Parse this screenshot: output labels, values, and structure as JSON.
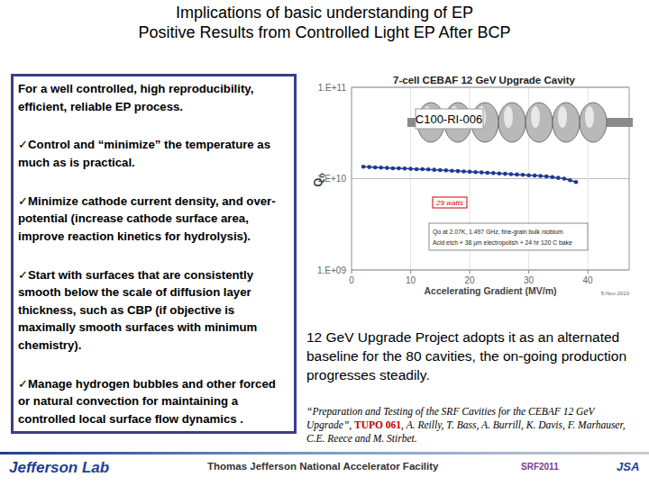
{
  "slide": {
    "title": [
      "Implications of basic understanding of EP",
      "Positive Results from Controlled Light EP After BCP"
    ],
    "intro": "For a well controlled, high reproducibility, efficient, reliable EP process.",
    "bullet_symbol": "✓",
    "bullets": [
      "Control and “minimize” the temperature as much as is practical.",
      "Minimize cathode current density, and over-potential (increase cathode surface area, improve reaction kinetics for hydrolysis).",
      "Start with surfaces that are consistently smooth below the scale of diffusion layer thickness, such as CBP (if objective is maximally smooth surfaces with minimum chemistry).",
      "Manage hydrogen bubbles and other forced  or natural convection for maintaining a controlled local surface flow dynamics ."
    ],
    "cavity_label": "C100-RI-006",
    "summary": "12 GeV Upgrade Project adopts it as an alternated baseline for the 80 cavities, the on-going production progresses steadily.",
    "reference": {
      "title": "“Preparation and Testing of the SRF Cavities for the CEBAF 12 GeV Upgrade”, ",
      "code": "TUPO 061",
      "authors": ", A. Reilly, T. Bass, A. Burrill, K. Davis, F. Marhauser, C.E. Reece and M. Stirbet."
    },
    "footer": {
      "logo": "Jefferson Lab",
      "center": "Thomas Jefferson National Accelerator Facility",
      "conference": "SRF2011",
      "partner": "JSA"
    }
  },
  "chart_data": {
    "type": "line",
    "title": "7-cell CEBAF 12 GeV Upgrade Cavity",
    "x_label": "Accelerating Gradient (MV/m)",
    "y_label": "Qo",
    "annotations": [
      "29 watts",
      "Qo at 2.07K, 1.497 GHz, fine-grain bulk niobium",
      "Acid etch + 38 μm electropolish + 24 hr 120 C bake",
      "5-Nov-2010"
    ],
    "x": [
      2,
      3,
      4,
      5,
      6,
      7,
      8,
      9,
      10,
      11,
      12,
      13,
      14,
      15,
      16,
      17,
      18,
      19,
      20,
      21,
      22,
      23,
      24,
      25,
      26,
      27,
      28,
      29,
      30,
      31,
      32,
      33,
      34,
      35,
      36,
      37,
      38
    ],
    "series": [
      {
        "color": "#1f3a93",
        "marker": "circle",
        "values": [
          13500000000,
          13400000000,
          13300000000,
          13200000000,
          13100000000,
          13000000000,
          13000000000,
          12900000000,
          12800000000,
          12700000000,
          12700000000,
          12600000000,
          12500000000,
          12400000000,
          12300000000,
          12200000000,
          12100000000,
          12000000000,
          11900000000,
          11800000000,
          11700000000,
          11600000000,
          11500000000,
          11400000000,
          11300000000,
          11200000000,
          11100000000,
          11000000000,
          10900000000,
          10800000000,
          10700000000,
          10600000000,
          10400000000,
          10200000000,
          10000000000,
          9600000000,
          9200000000
        ]
      }
    ],
    "xlim": [
      0,
      47
    ],
    "xticks": [
      0,
      10,
      20,
      30,
      40
    ],
    "ylim": [
      1000000000,
      100000000000
    ],
    "yticks": [
      {
        "value": 1000000000,
        "label": "1.E+09"
      },
      {
        "value": 10000000000,
        "label": "1.E+10"
      },
      {
        "value": 100000000000,
        "label": "1.E+11"
      }
    ],
    "log": "y",
    "grid": true
  }
}
